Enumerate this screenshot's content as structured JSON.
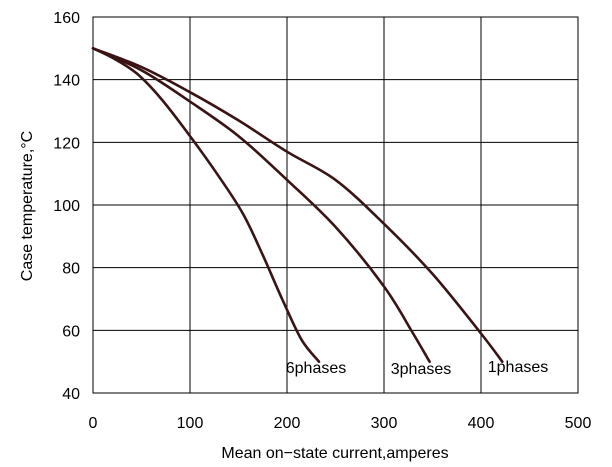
{
  "chart_data": {
    "type": "line",
    "xlabel": "Mean on−state current,amperes",
    "ylabel": "Case temperature,°C",
    "xlim": [
      0,
      500
    ],
    "ylim": [
      40,
      160
    ],
    "xticks": [
      "0",
      "100",
      "200",
      "300",
      "400",
      "500"
    ],
    "yticks": [
      "40",
      "60",
      "80",
      "100",
      "120",
      "140",
      "160"
    ],
    "grid": true,
    "line_color": "#3a1414",
    "series": [
      {
        "name": "6phases",
        "points": [
          [
            0,
            150
          ],
          [
            20,
            147
          ],
          [
            45,
            142
          ],
          [
            70,
            134
          ],
          [
            100,
            122
          ],
          [
            130,
            109
          ],
          [
            155,
            97
          ],
          [
            175,
            84
          ],
          [
            195,
            70
          ],
          [
            215,
            57
          ],
          [
            233,
            50
          ]
        ]
      },
      {
        "name": "3phases",
        "points": [
          [
            0,
            150
          ],
          [
            50,
            143
          ],
          [
            100,
            133
          ],
          [
            150,
            122
          ],
          [
            200,
            108
          ],
          [
            250,
            93
          ],
          [
            300,
            74
          ],
          [
            330,
            59
          ],
          [
            347,
            50
          ]
        ]
      },
      {
        "name": "1phases",
        "points": [
          [
            0,
            150
          ],
          [
            50,
            144
          ],
          [
            100,
            136
          ],
          [
            150,
            127
          ],
          [
            200,
            117
          ],
          [
            250,
            108
          ],
          [
            300,
            94
          ],
          [
            350,
            78
          ],
          [
            400,
            59
          ],
          [
            422,
            50
          ]
        ]
      }
    ]
  }
}
